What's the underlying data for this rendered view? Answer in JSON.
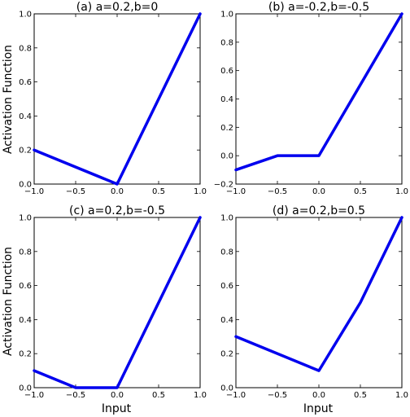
{
  "chart_data": [
    {
      "type": "line",
      "title": "(a) a=0.2,b=0",
      "xlim": [
        -1.0,
        1.0
      ],
      "ylim": [
        0.0,
        1.0
      ],
      "xticks": [
        "−1.0",
        "−0.5",
        "0.0",
        "0.5",
        "1.0"
      ],
      "yticks": [
        "0.0",
        "0.2",
        "0.4",
        "0.6",
        "0.8",
        "1.0"
      ],
      "color": "#0000ee",
      "series": [
        {
          "x": [
            -1.0,
            0.0,
            1.0
          ],
          "y": [
            0.2,
            0.0,
            1.0
          ]
        }
      ]
    },
    {
      "type": "line",
      "title": "(b) a=-0.2,b=-0.5",
      "xlim": [
        -1.0,
        1.0
      ],
      "ylim": [
        -0.2,
        1.0
      ],
      "xticks": [
        "−1.0",
        "−0.5",
        "0.0",
        "0.5",
        "1.0"
      ],
      "yticks": [
        "−0.2",
        "0.0",
        "0.2",
        "0.4",
        "0.6",
        "0.8",
        "1.0"
      ],
      "color": "#0000ee",
      "series": [
        {
          "x": [
            -1.0,
            -0.5,
            0.0,
            1.0
          ],
          "y": [
            -0.1,
            0.0,
            0.0,
            1.0
          ]
        }
      ]
    },
    {
      "type": "line",
      "title": "(c) a=0.2,b=-0.5",
      "xlim": [
        -1.0,
        1.0
      ],
      "ylim": [
        0.0,
        1.0
      ],
      "xticks": [
        "−1.0",
        "−0.5",
        "0.0",
        "0.5",
        "1.0"
      ],
      "yticks": [
        "0.0",
        "0.2",
        "0.4",
        "0.6",
        "0.8",
        "1.0"
      ],
      "color": "#0000ee",
      "series": [
        {
          "x": [
            -1.0,
            -0.5,
            0.0,
            1.0
          ],
          "y": [
            0.1,
            0.0,
            0.0,
            1.0
          ]
        }
      ]
    },
    {
      "type": "line",
      "title": "(d) a=0.2,b=0.5",
      "xlim": [
        -1.0,
        1.0
      ],
      "ylim": [
        0.0,
        1.0
      ],
      "xticks": [
        "−1.0",
        "−0.5",
        "0.0",
        "0.5",
        "1.0"
      ],
      "yticks": [
        "0.0",
        "0.2",
        "0.4",
        "0.6",
        "0.8",
        "1.0"
      ],
      "color": "#0000ee",
      "series": [
        {
          "x": [
            -1.0,
            0.0,
            0.5,
            1.0
          ],
          "y": [
            0.3,
            0.1,
            0.5,
            1.0
          ]
        }
      ]
    }
  ],
  "labels": {
    "ylabel_top": "Activation Function",
    "ylabel_bottom": "Activation Function",
    "xlabel_left": "Input",
    "xlabel_right": "Input"
  }
}
